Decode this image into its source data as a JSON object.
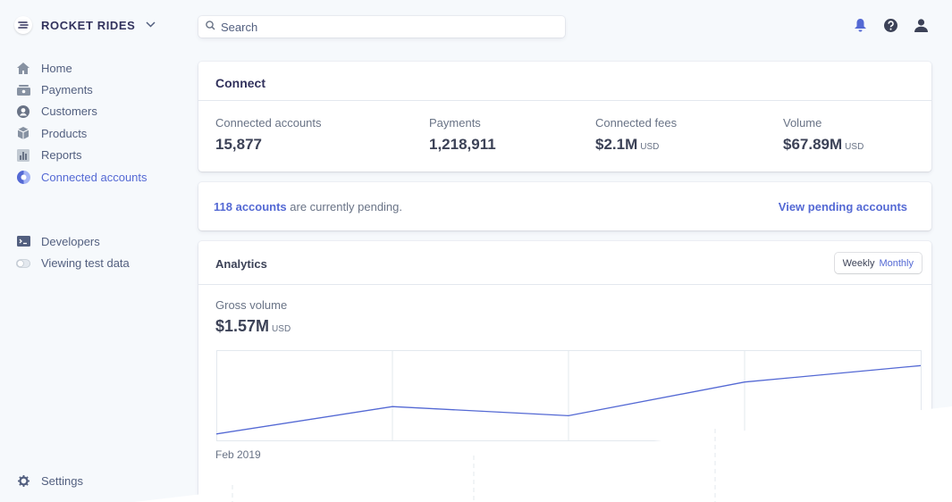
{
  "brand": {
    "name": "ROCKET RIDES",
    "icon": "rocket-icon"
  },
  "sidebar": {
    "items": [
      {
        "label": "Home",
        "icon": "home-icon"
      },
      {
        "label": "Payments",
        "icon": "payments-icon"
      },
      {
        "label": "Customers",
        "icon": "customers-icon"
      },
      {
        "label": "Products",
        "icon": "products-icon"
      },
      {
        "label": "Reports",
        "icon": "reports-icon"
      },
      {
        "label": "Connected accounts",
        "icon": "connected-accounts-icon",
        "active": true
      }
    ],
    "secondary": [
      {
        "label": "Developers",
        "icon": "developers-icon"
      },
      {
        "label": "Viewing test data",
        "icon": "toggle-icon"
      }
    ],
    "settings": {
      "label": "Settings",
      "icon": "gear-icon"
    }
  },
  "search": {
    "placeholder": "Search",
    "value": ""
  },
  "topbar": {
    "icons": [
      "bell-icon",
      "help-icon",
      "user-icon"
    ]
  },
  "connect": {
    "title": "Connect",
    "stats": [
      {
        "label": "Connected accounts",
        "value": "15,877",
        "unit": ""
      },
      {
        "label": "Payments",
        "value": "1,218,911",
        "unit": ""
      },
      {
        "label": "Connected fees",
        "value": "$2.1M",
        "unit": "USD"
      },
      {
        "label": "Volume",
        "value": "$67.89M",
        "unit": "USD"
      }
    ]
  },
  "pending": {
    "count_text": "118 accounts",
    "rest_text": " are currently pending.",
    "link": "View pending accounts"
  },
  "analytics": {
    "title": "Analytics",
    "toggle": {
      "weekly": "Weekly",
      "monthly": "Monthly",
      "selected": "Monthly"
    },
    "gross_label": "Gross volume",
    "gross_value": "$1.57M",
    "gross_unit": "USD",
    "date_label": "Feb 2019"
  },
  "colors": {
    "accent": "#5469d4",
    "background": "#f6f9fc",
    "text": "#32325d",
    "muted": "#697386"
  },
  "chart_data": {
    "type": "line",
    "x": [
      0,
      1,
      2,
      3,
      4
    ],
    "series": [
      {
        "values": [
          0.08,
          0.38,
          0.28,
          0.65,
          0.83
        ]
      }
    ],
    "ylim": [
      0,
      1
    ],
    "grid": true,
    "xlabel": "",
    "ylabel": ""
  }
}
